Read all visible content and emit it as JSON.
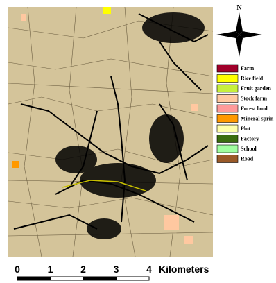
{
  "north": "N",
  "legend": [
    {
      "label": "Farm",
      "color": "#a0002a"
    },
    {
      "label": "Rice field",
      "color": "#ffff00"
    },
    {
      "label": "Fruit garden",
      "color": "#c8f03c"
    },
    {
      "label": "Stock farm",
      "color": "#ffc8a0"
    },
    {
      "label": "Forest land",
      "color": "#ff9a9a"
    },
    {
      "label": "Mineral sprin",
      "color": "#ff9900"
    },
    {
      "label": "Plot",
      "color": "#ffffaa"
    },
    {
      "label": "Factory",
      "color": "#3a6e10"
    },
    {
      "label": "School",
      "color": "#a0ffa0"
    },
    {
      "label": "Road",
      "color": "#9a5a28"
    }
  ],
  "scale": {
    "ticks": [
      0,
      1,
      2,
      3,
      4
    ],
    "unit": "Kilometers"
  }
}
